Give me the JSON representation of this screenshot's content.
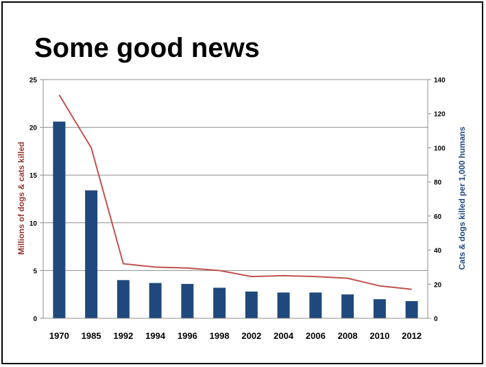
{
  "slide": {
    "title": "Some good news"
  },
  "chart_data": {
    "type": "bar",
    "categories": [
      "1970",
      "1985",
      "1992",
      "1994",
      "1996",
      "1998",
      "2002",
      "2004",
      "2006",
      "2008",
      "2010",
      "2012"
    ],
    "series": [
      {
        "name": "Millions of dogs & cats killed",
        "kind": "bar",
        "axis": "left",
        "color": "#1f497d",
        "values": [
          20.6,
          13.4,
          4.0,
          3.7,
          3.6,
          3.2,
          2.8,
          2.7,
          2.7,
          2.5,
          2.0,
          1.8
        ]
      },
      {
        "name": "Cats & dogs killed per 1,000 humans",
        "kind": "line",
        "axis": "right",
        "color": "#c0504d",
        "values": [
          131,
          100,
          32,
          30,
          29.5,
          28,
          24.5,
          25,
          24.5,
          23.5,
          19,
          17
        ]
      }
    ],
    "ylabel": "Millions of dogs & cats killed",
    "ylabel_color": "#953735",
    "ylim": [
      0,
      25
    ],
    "yticks": [
      "0",
      "5",
      "10",
      "15",
      "20",
      "25"
    ],
    "y2label": "Cats & dogs killed per 1,000 humans",
    "y2label_color": "#1f497d",
    "y2lim": [
      0,
      140
    ],
    "y2ticks": [
      "0",
      "20",
      "40",
      "60",
      "80",
      "100",
      "120",
      "140"
    ],
    "grid": true,
    "legend": "none"
  }
}
